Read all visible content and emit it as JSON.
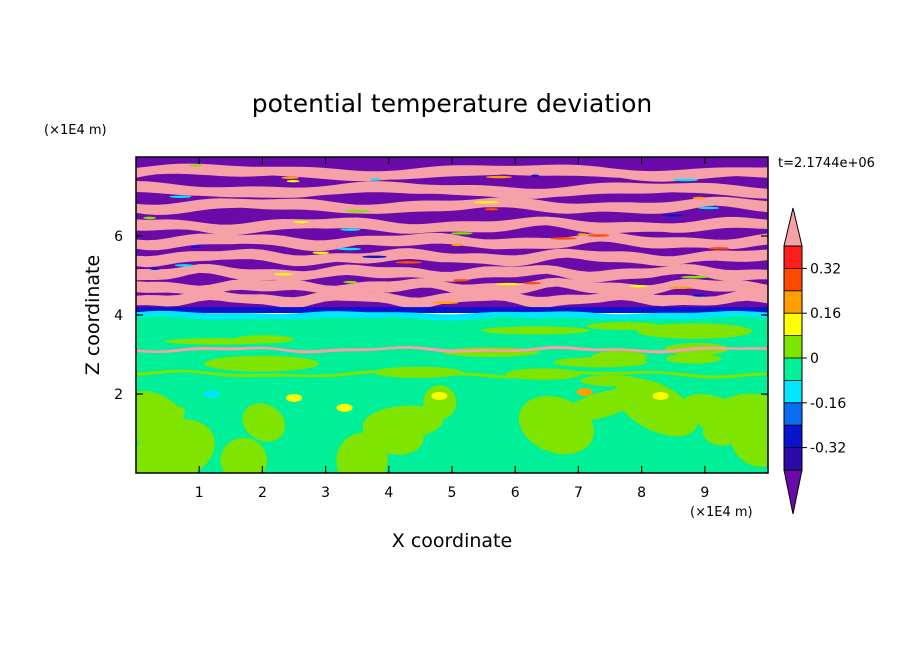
{
  "chart_data": {
    "type": "heatmap",
    "title": "potential temperature deviation",
    "xlabel": "X coordinate",
    "ylabel": "Z coordinate",
    "x_unit": "(×1E4 m)",
    "y_unit": "(×1E4 m)",
    "time_label": "t=2.1744e+06",
    "xlim": [
      0,
      10
    ],
    "ylim": [
      0,
      8
    ],
    "x_ticks": [
      "1",
      "2",
      "3",
      "4",
      "5",
      "6",
      "7",
      "8",
      "9"
    ],
    "y_ticks": [
      "2",
      "4",
      "6"
    ],
    "colorbar": {
      "levels": [
        -0.4,
        -0.32,
        -0.24,
        -0.16,
        -0.08,
        0,
        0.08,
        0.16,
        0.24,
        0.32,
        0.4
      ],
      "labels": [
        "-0.32",
        "-0.16",
        "0",
        "0.16",
        "0.32"
      ],
      "label_values": [
        -0.32,
        -0.16,
        0,
        0.16,
        0.32
      ],
      "colors": [
        "#6a0aa8",
        "#2c0aa8",
        "#0a14d0",
        "#0a6cf0",
        "#00e6ff",
        "#00f09a",
        "#7ee400",
        "#ffff00",
        "#ffa000",
        "#ff4a00",
        "#ff1e1e",
        "#f6a0a8"
      ],
      "extend": "both"
    },
    "regions": [
      {
        "z_range": [
          0,
          2.0
        ],
        "description": "green turbulent boundary layer",
        "dominant_levels": [
          0,
          0.08
        ]
      },
      {
        "z_range": [
          2.0,
          4.1
        ],
        "description": "mid layer near zero deviation",
        "dominant_levels": [
          -0.08,
          0
        ]
      },
      {
        "z_range": [
          3.9,
          4.1
        ],
        "description": "cyan/blue interface band",
        "dominant_levels": [
          -0.16,
          -0.24
        ]
      },
      {
        "z_range": [
          4.1,
          8.0
        ],
        "description": "alternating bands of large positive and negative deviation",
        "dominant_levels": [
          -0.4,
          0.4
        ]
      }
    ]
  }
}
